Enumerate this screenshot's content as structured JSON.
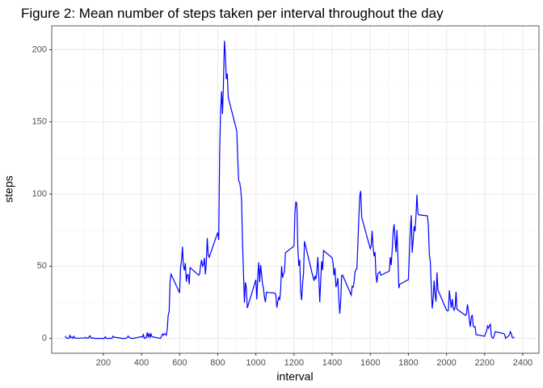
{
  "chart_data": {
    "type": "line",
    "title": "Figure 2: Mean number of steps taken per interval throughout the day",
    "x_label": "interval",
    "y_label": "steps",
    "x": [
      0,
      5,
      10,
      15,
      20,
      25,
      30,
      35,
      40,
      45,
      50,
      55,
      100,
      105,
      110,
      115,
      120,
      125,
      130,
      135,
      140,
      145,
      150,
      155,
      200,
      205,
      210,
      215,
      220,
      225,
      230,
      235,
      240,
      245,
      250,
      255,
      300,
      305,
      310,
      315,
      320,
      325,
      330,
      335,
      340,
      345,
      350,
      355,
      400,
      405,
      410,
      415,
      420,
      425,
      430,
      435,
      440,
      445,
      450,
      455,
      500,
      505,
      510,
      515,
      520,
      525,
      530,
      535,
      540,
      545,
      550,
      555,
      600,
      605,
      610,
      615,
      620,
      625,
      630,
      635,
      640,
      645,
      650,
      655,
      700,
      705,
      710,
      715,
      720,
      725,
      730,
      735,
      740,
      745,
      750,
      755,
      800,
      805,
      810,
      815,
      820,
      825,
      830,
      835,
      840,
      845,
      850,
      855,
      900,
      905,
      910,
      915,
      920,
      925,
      930,
      935,
      940,
      945,
      950,
      955,
      1000,
      1005,
      1010,
      1015,
      1020,
      1025,
      1030,
      1035,
      1040,
      1045,
      1050,
      1055,
      1100,
      1105,
      1110,
      1115,
      1120,
      1125,
      1130,
      1135,
      1140,
      1145,
      1150,
      1155,
      1200,
      1205,
      1210,
      1215,
      1220,
      1225,
      1230,
      1235,
      1240,
      1245,
      1250,
      1255,
      1300,
      1305,
      1310,
      1315,
      1320,
      1325,
      1330,
      1335,
      1340,
      1345,
      1350,
      1355,
      1400,
      1405,
      1410,
      1415,
      1420,
      1425,
      1430,
      1435,
      1440,
      1445,
      1450,
      1455,
      1500,
      1505,
      1510,
      1515,
      1520,
      1525,
      1530,
      1535,
      1540,
      1545,
      1550,
      1555,
      1600,
      1605,
      1610,
      1615,
      1620,
      1625,
      1630,
      1635,
      1640,
      1645,
      1650,
      1655,
      1700,
      1705,
      1710,
      1715,
      1720,
      1725,
      1730,
      1735,
      1740,
      1745,
      1750,
      1755,
      1800,
      1805,
      1810,
      1815,
      1820,
      1825,
      1830,
      1835,
      1840,
      1845,
      1850,
      1855,
      1900,
      1905,
      1910,
      1915,
      1920,
      1925,
      1930,
      1935,
      1940,
      1945,
      1950,
      1955,
      2000,
      2005,
      2010,
      2015,
      2020,
      2025,
      2030,
      2035,
      2040,
      2045,
      2050,
      2055,
      2100,
      2105,
      2110,
      2115,
      2120,
      2125,
      2130,
      2135,
      2140,
      2145,
      2150,
      2155,
      2200,
      2205,
      2210,
      2215,
      2220,
      2225,
      2230,
      2235,
      2240,
      2245,
      2250,
      2255,
      2300,
      2305,
      2310,
      2315,
      2320,
      2325,
      2330,
      2335,
      2340,
      2345,
      2350,
      2355
    ],
    "series": [
      {
        "color": "#0000ff",
        "values": [
          1.7,
          0.3,
          0.1,
          0.2,
          0.1,
          2.1,
          0.5,
          0.9,
          0,
          1.5,
          0.3,
          0.1,
          0.3,
          0.7,
          0.2,
          0.3,
          0,
          1.1,
          1.8,
          0.2,
          0.2,
          0.4,
          0.3,
          0,
          0,
          0,
          1.1,
          0,
          0,
          0.1,
          0,
          0.2,
          0,
          0,
          1.5,
          0.9,
          0,
          0,
          0,
          0,
          0.2,
          0.6,
          1.6,
          0.6,
          0.5,
          0.1,
          0,
          0,
          1.2,
          0.9,
          2.6,
          0,
          0.3,
          0.4,
          4.1,
          0.7,
          3.5,
          0.8,
          3.1,
          1.1,
          0,
          1.6,
          3,
          2.2,
          3.3,
          3,
          2.1,
          6.1,
          16,
          18.3,
          39.5,
          44.5,
          31.5,
          49.3,
          53.8,
          63.5,
          50,
          47.1,
          52.2,
          39.3,
          44,
          44.2,
          37.4,
          49,
          43.8,
          44.4,
          50.5,
          54.5,
          49.9,
          51,
          55.7,
          44.3,
          52.3,
          69.5,
          57.8,
          56.2,
          73.4,
          68.2,
          129.4,
          157.5,
          171.2,
          155.4,
          177.3,
          206.2,
          195.9,
          179.6,
          183.4,
          167,
          143.5,
          124,
          109.1,
          108.1,
          103.7,
          95.97,
          66.2,
          45.2,
          24.8,
          38.8,
          34.98,
          21.1,
          40.6,
          27,
          42.4,
          52.7,
          38.9,
          50.8,
          44.3,
          37.4,
          34.7,
          28.3,
          25.1,
          31.9,
          31.4,
          29.7,
          21.3,
          25.5,
          28.4,
          26.5,
          33.4,
          50,
          42,
          44.6,
          46,
          59.3,
          63.9,
          87.7,
          94.8,
          92.8,
          63.4,
          50.2,
          54.5,
          32.4,
          26.5,
          37.7,
          45.1,
          67.3,
          42.3,
          39.9,
          43.3,
          40.98,
          46.2,
          56.4,
          42.8,
          25.1,
          39.97,
          53.5,
          47.3,
          60.8,
          55.8,
          51.96,
          43.6,
          48.7,
          35.5,
          37.5,
          41.8,
          27.5,
          17.1,
          26.1,
          43.6,
          43.8,
          30,
          36.1,
          35.5,
          38.8,
          45.96,
          47.8,
          48.1,
          65.3,
          82.9,
          98.7,
          102.1,
          83.96,
          62.1,
          64.1,
          74.5,
          63.2,
          56.9,
          59.8,
          43.9,
          38.6,
          44.7,
          45.5,
          46.2,
          43.7,
          46.6,
          56.3,
          50.7,
          61.2,
          73.4,
          79.1,
          68.9,
          59.7,
          75.1,
          56.5,
          34.8,
          37.5,
          40.7,
          58,
          74.7,
          85.3,
          59.3,
          67.8,
          77.7,
          74.2,
          85.3,
          99.5,
          86.6,
          85.6,
          84.9,
          77.8,
          58,
          53.4,
          36.3,
          20.7,
          27.4,
          40,
          30.2,
          25.5,
          45.7,
          33.5,
          19.6,
          19,
          19.3,
          33.3,
          26.8,
          21.2,
          27.3,
          21.3,
          19.5,
          21.3,
          32.3,
          20.2,
          15.9,
          17.2,
          23.5,
          19.2,
          12.5,
          8,
          14.7,
          16.3,
          8.7,
          7.8,
          8.1,
          2.6,
          1.5,
          3.7,
          4.8,
          8.5,
          7.1,
          8.7,
          9.8,
          2.2,
          0.3,
          0.1,
          1.6,
          4.6,
          3.3,
          2.8,
          0,
          0.8,
          0.96,
          1.6,
          2.6,
          4.7,
          3.3,
          0.6,
          0.2,
          1.1
        ]
      }
    ],
    "xlim": [
      -71,
      2485
    ],
    "ylim": [
      -10.3,
      216.5
    ],
    "xticks": [
      200,
      400,
      600,
      800,
      1000,
      1200,
      1400,
      1600,
      1800,
      2000,
      2200,
      2400
    ],
    "yticks": [
      0,
      50,
      100,
      150,
      200
    ],
    "grid": true
  }
}
